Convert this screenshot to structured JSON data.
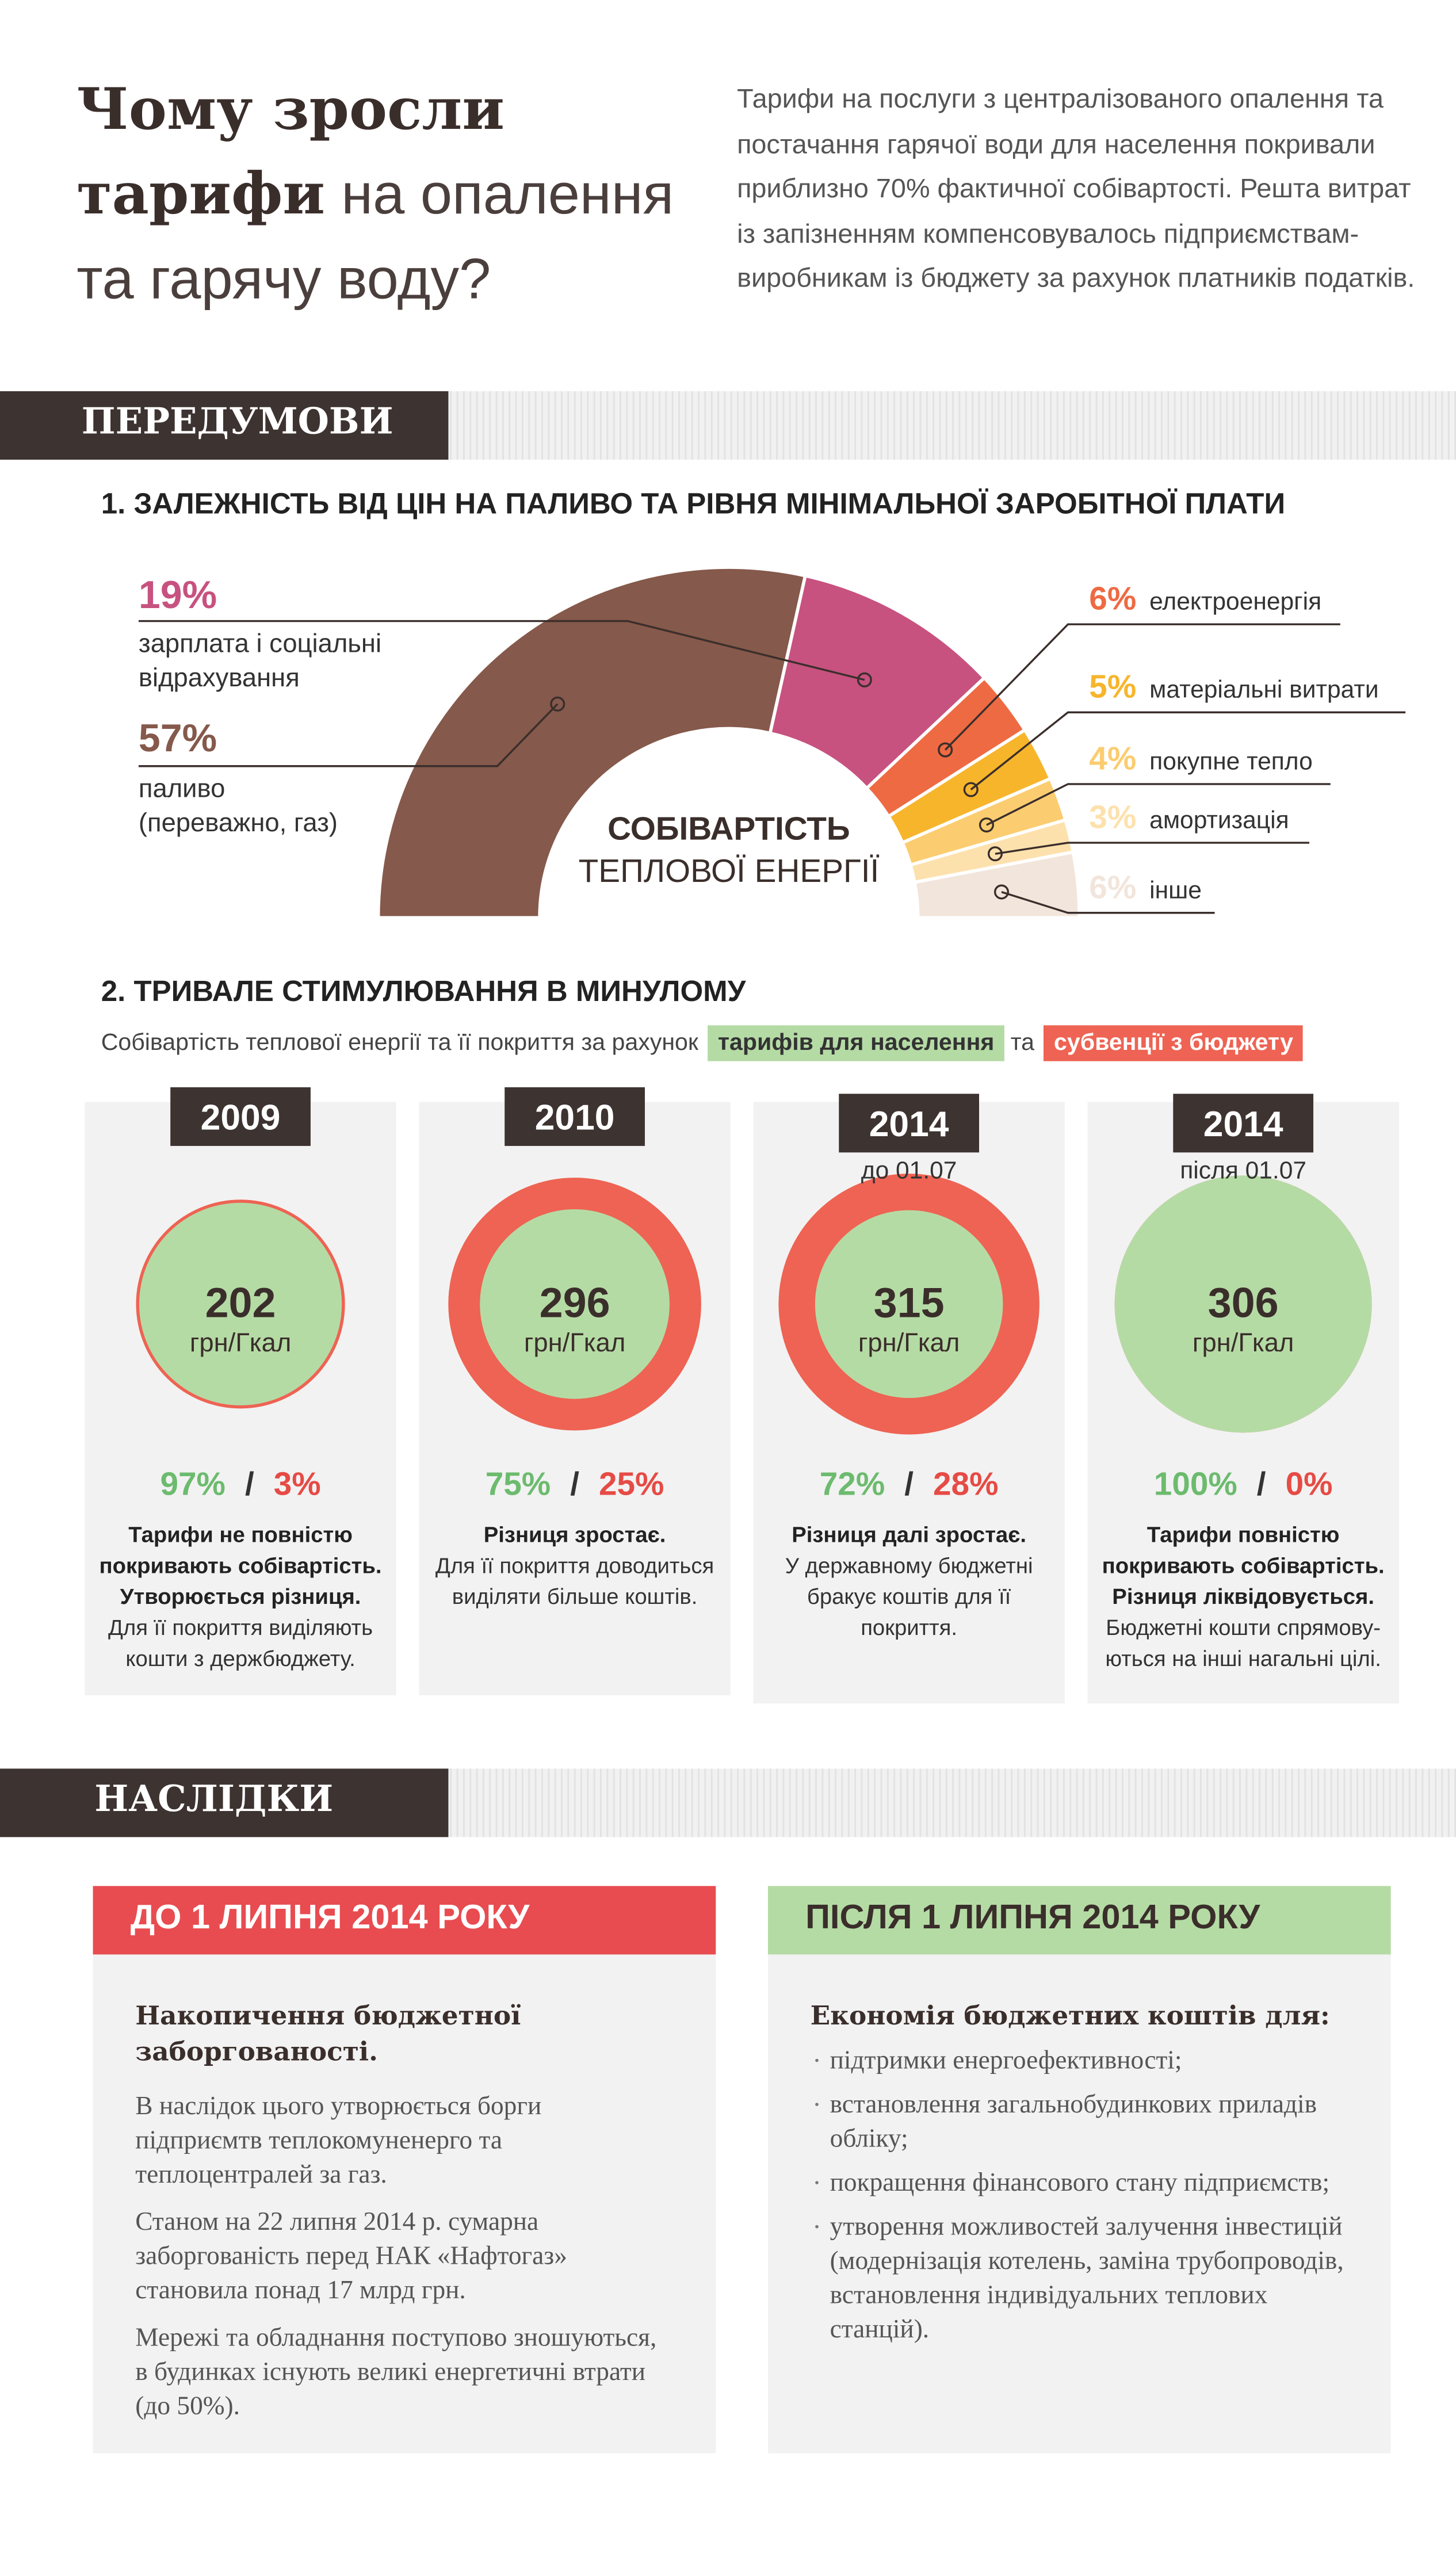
{
  "header": {
    "title_line1": "Чому зросли",
    "title_bold": "тарифи",
    "title_light": "на опалення",
    "title_line3": "та гарячу воду?",
    "intro": "Тарифи на послуги з централізованого опалення та постачання гарячої води для населення покривали приблизно 70% фактичної собівартості. Решта витрат із запізненням компенсовувалось підприємствам-виробникам із бюджету за рахунок платників податків."
  },
  "sections": {
    "background": "ПЕРЕДУМОВИ",
    "consequences": "НАСЛІДКИ"
  },
  "chart_data": [
    {
      "type": "donut",
      "title": "1. ЗАЛЕЖНІСТЬ ВІД ЦІН НА ПАЛИВО ТА РІВНЯ МІНІМАЛЬНОЇ ЗАРОБІТНОЇ ПЛАТИ",
      "center_title": "СОБІВАРТІСТЬ",
      "center_subtitle": "ТЕПЛОВОЇ ЕНЕРГІЇ",
      "categories": [
        "паливо (переважно, газ)",
        "зарплата і соціальні відрахування",
        "електроенергія",
        "матеріальні витрати",
        "покупне тепло",
        "амортизація",
        "інше"
      ],
      "values": [
        57,
        19,
        6,
        5,
        4,
        3,
        6
      ],
      "value_labels": [
        "57%",
        "19%",
        "6%",
        "5%",
        "4%",
        "3%",
        "6%"
      ],
      "colors": [
        "#85594b",
        "#c7527f",
        "#ee6a43",
        "#f7b52c",
        "#fbcd70",
        "#fde1ad",
        "#f2e5db"
      ]
    },
    {
      "type": "circles",
      "title": "2. ТРИВАЛЕ СТИМУЛЮВАННЯ В МИНУЛОМУ",
      "subtitle": "Собівартість теплової енергії та її покриття за рахунок",
      "subtitle_joiner": "та",
      "categories": [
        "2009",
        "2010",
        "2014",
        "2014"
      ],
      "category_notes": [
        null,
        null,
        "до 01.07",
        "після 01.07"
      ],
      "values": [
        202,
        296,
        315,
        306
      ],
      "unit": "грн/Гкал",
      "share_separator": "/",
      "series": [
        {
          "name": "тарифів для населення",
          "color": "#b5dba5",
          "text_color": "#6cbb6e",
          "values": [
            97,
            75,
            72,
            100
          ],
          "value_labels": [
            "97%",
            "75%",
            "72%",
            "100%"
          ]
        },
        {
          "name": "субвенції з бюджету",
          "color": "#ee6353",
          "text_color": "#e64b45",
          "values": [
            3,
            25,
            28,
            0
          ],
          "value_labels": [
            "3%",
            "25%",
            "28%",
            "0%"
          ]
        }
      ],
      "descriptions": [
        {
          "bold": "Тарифи не повністю покривають собівартість. Утворюється різниця.",
          "text": "Для її покриття виділяють кошти з держбюджету."
        },
        {
          "bold": "Різниця зростає.",
          "text": "Для її покриття доводиться виділяти більше коштів."
        },
        {
          "bold": "Різниця далі зростає.",
          "text": "У державному бюджетні бракує коштів для її покриття."
        },
        {
          "bold": "Тарифи повністю покривають собівартість. Різниця ліквідовується.",
          "text": "Бюджетні кошти спрямову-ються на інші нагальні цілі."
        }
      ]
    }
  ],
  "before": {
    "header": "ДО 1 ЛИПНЯ 2014 РОКУ",
    "heading": "Накопичення бюджетної заборгованості.",
    "paragraphs": [
      "В наслідок цього утворюється борги підприємтв теплокомуненерго та теплоцентралей за газ.",
      "Станом на 22 липня 2014 р. сумарна заборгованість перед НАК «Нафтогаз» становила понад 17 млрд грн.",
      "Мережі та обладнання поступово зношуються, в будинках існують великі енергетичні втрати (до 50%)."
    ]
  },
  "after": {
    "header": "ПІСЛЯ 1 ЛИПНЯ 2014 РОКУ",
    "heading": "Економія бюджетних коштів для:",
    "items": [
      "підтримки енергоефективності;",
      "встановлення загальнобудинкових приладів обліку;",
      "покращення фінансового стану підприємств;",
      "утворення можливостей залучення інвестицій (модернізація котелень, заміна трубопроводів, встановлення індивідуальних теплових станцій)."
    ]
  }
}
